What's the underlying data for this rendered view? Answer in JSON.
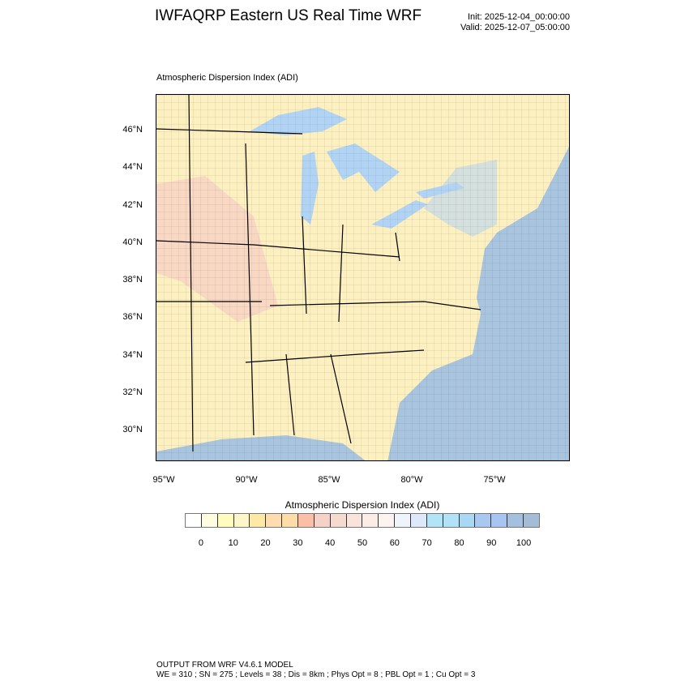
{
  "header": {
    "title": "IWFAQRP Eastern US Real Time WRF",
    "init": "Init: 2025-12-04_00:00:00",
    "valid": "Valid: 2025-12-07_05:00:00"
  },
  "map": {
    "subtitle": "Atmospheric Dispersion Index   (ADI)",
    "lat_labels": [
      "46°N",
      "44°N",
      "42°N",
      "40°N",
      "38°N",
      "36°N",
      "34°N",
      "32°N",
      "30°N"
    ],
    "lon_labels": [
      "95°W",
      "90°W",
      "85°W",
      "80°W",
      "75°W"
    ],
    "colors": {
      "land": "#fdf0c0",
      "ocean": "#a8c4de",
      "lake": "#b2d4f4",
      "high_adi_west": "#f6cfc4"
    }
  },
  "colorbar": {
    "title": "Atmospheric Dispersion Index  (ADI)",
    "labels": [
      "0",
      "10",
      "20",
      "30",
      "40",
      "50",
      "60",
      "70",
      "80",
      "90",
      "100"
    ],
    "colors": [
      "#ffffff",
      "#fffde0",
      "#fffcc0",
      "#fdf6c8",
      "#fde9a6",
      "#fddcae",
      "#fddca8",
      "#fbbfa8",
      "#f6d1c8",
      "#f6dad0",
      "#f8e4da",
      "#fcece6",
      "#fdf4f2",
      "#eef3fc",
      "#dde9fa",
      "#b2e4f8",
      "#b2e2f8",
      "#a8d8f4",
      "#a8c8f0",
      "#a8c4f0",
      "#a4c0de",
      "#a4bcd4"
    ]
  },
  "footer": {
    "line1": "OUTPUT FROM WRF V4.6.1 MODEL",
    "line2": "WE = 310 ; SN = 275 ; Levels = 38 ; Dis = 8km ; Phys Opt = 8 ; PBL Opt = 1 ; Cu Opt = 3"
  }
}
